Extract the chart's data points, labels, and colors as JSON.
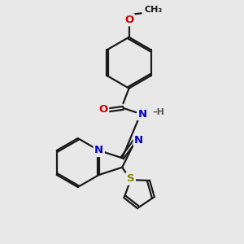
{
  "bg_color": "#e8e8e8",
  "bond_color": "#1a1a1a",
  "bond_lw": 1.6,
  "dbo": 0.08,
  "atom_colors": {
    "O": "#cc0000",
    "N": "#0000cc",
    "S": "#888800",
    "H": "#555555"
  },
  "fs": 9.5,
  "figsize": [
    3.0,
    3.0
  ],
  "dpi": 100,
  "xlim": [
    -1.5,
    8.5
  ],
  "ylim": [
    -1.0,
    9.5
  ]
}
